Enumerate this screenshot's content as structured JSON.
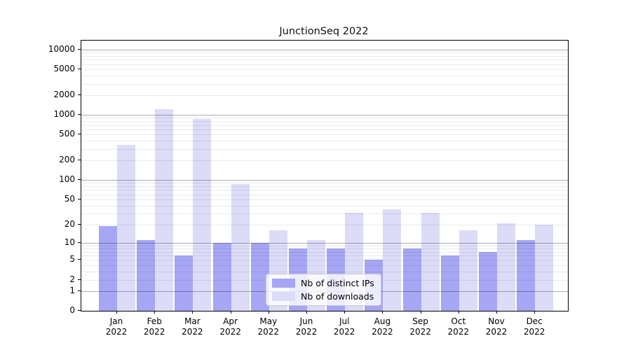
{
  "figure": {
    "title": "JunctionSeq 2022",
    "background": "#ffffff"
  },
  "chart_data": {
    "type": "bar",
    "title": "JunctionSeq 2022",
    "categories": [
      "Jan 2022",
      "Feb 2022",
      "Mar 2022",
      "Apr 2022",
      "May 2022",
      "Jun 2022",
      "Jul 2022",
      "Aug 2022",
      "Sep 2022",
      "Oct 2022",
      "Nov 2022",
      "Dec 2022"
    ],
    "series": [
      {
        "name": "Nb of distinct IPs",
        "color": "#a6a6f4",
        "values": [
          19,
          11,
          6,
          10,
          10,
          8,
          8,
          5,
          8,
          6,
          7,
          11
        ]
      },
      {
        "name": "Nb of downloads",
        "color": "#dcdcf8",
        "values": [
          350,
          1225,
          875,
          86,
          16,
          11,
          31,
          35,
          31,
          16,
          21,
          20
        ]
      }
    ],
    "y_axis": {
      "scale": "log1p",
      "ticks": [
        0,
        1,
        2,
        5,
        10,
        20,
        50,
        100,
        200,
        500,
        1000,
        2000,
        5000,
        10000
      ],
      "range": [
        0,
        10000
      ],
      "major_gridline_values": [
        1,
        10,
        100,
        1000,
        10000
      ]
    },
    "x_axis": {
      "tick_labels_are_two_lines": true
    },
    "grid": "on",
    "legend": {
      "position": "lower-center",
      "entries": [
        "Nb of distinct IPs",
        "Nb of downloads"
      ]
    }
  },
  "colors": {
    "distinct_ips_bar": "#a6a6f4",
    "downloads_bar": "#dcdcf8",
    "axis_line": "#000000",
    "grid_major": "rgba(0,0,0,0.32)",
    "grid_minor": "rgba(0,0,0,0.08)",
    "legend_border": "#cbcbcb",
    "legend_background": "rgba(255,255,255,0.8)"
  }
}
